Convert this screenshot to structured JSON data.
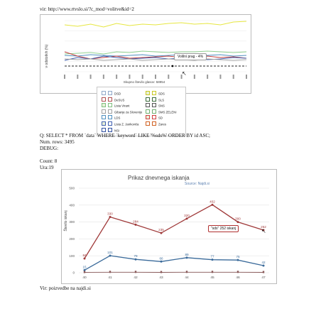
{
  "caption_top": "vir: http://www.rtvslo.si/?c_mod=volitve&id=2",
  "chart1": {
    "ylabel": "v odstotkih (%)",
    "xlabel": "Skupno število glasov: 58954",
    "tooltip": "Volilni prag - 4%",
    "legend": [
      {
        "label": "DSD",
        "checked": false,
        "color": "#8fa8c8"
      },
      {
        "label": "SDS",
        "checked": true,
        "color": "#c8c820"
      },
      {
        "label": "DeSUS",
        "checked": false,
        "color": "#b05050"
      },
      {
        "label": "SLS",
        "checked": false,
        "color": "#3a6a3a"
      },
      {
        "label": "Lista Virant",
        "checked": true,
        "color": "#80c080"
      },
      {
        "label": "SNS",
        "checked": false,
        "color": "#555555"
      },
      {
        "label": "Gibanje za Slovenijo",
        "checked": false,
        "color": "#a0a0a0"
      },
      {
        "label": "SMS ZELENI",
        "checked": false,
        "color": "#70b070"
      },
      {
        "label": "LDS",
        "checked": false,
        "color": "#5090c0"
      },
      {
        "label": "SD",
        "checked": true,
        "color": "#d04040"
      },
      {
        "label": "Lista Z. Jankovića",
        "checked": true,
        "color": "#4060b0"
      },
      {
        "label": "Zares",
        "checked": false,
        "color": "#d06020"
      },
      {
        "label": "NSi",
        "checked": false,
        "color": "#3050a0"
      }
    ]
  },
  "sql": {
    "query": "Q: SELECT * FROM `data` WHERE `keyword` LIKE '%sds%' ORDER BY id ASC;",
    "num_rows": "Num. rows: 3495",
    "debug": "DEBUG:",
    "count": "Count: 8",
    "ura": "Ura:19"
  },
  "chart_data": {
    "type": "line",
    "title": "Prikaz dnevnega iskanja",
    "subtitle": "Source: Najdi.si",
    "ylabel": "Število iskanj",
    "ylim": [
      0,
      500
    ],
    "yticks": [
      0,
      100,
      200,
      300,
      400,
      500
    ],
    "x": [
      40,
      41,
      42,
      43,
      44,
      45,
      46,
      47
    ],
    "series": [
      {
        "name": "sds",
        "color": "#a03a3a",
        "values": [
          84,
          330,
          284,
          235,
          320,
          402,
          300,
          252
        ]
      },
      {
        "name": "",
        "color": "#3a6a9a",
        "values": [
          15,
          101,
          79,
          66,
          89,
          77,
          75,
          42
        ]
      },
      {
        "name": "",
        "color": "#8a5a5a",
        "values": [
          2,
          3,
          3,
          2,
          3,
          3,
          3,
          2
        ]
      }
    ],
    "tooltip": "\"sds\" 252 iskanj"
  },
  "caption_bottom": "Vir: poizvedbe na najdi.si"
}
